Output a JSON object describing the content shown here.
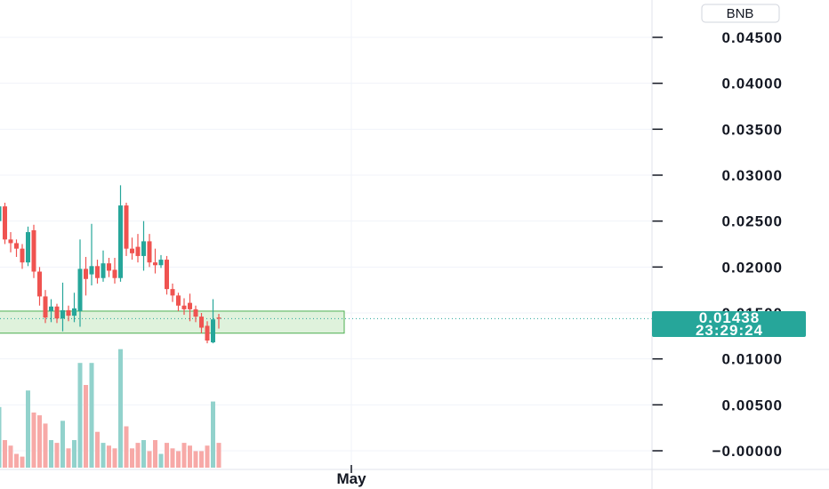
{
  "currency_badge": "BNB",
  "chart_data": {
    "type": "candlestick",
    "y_ticks": [
      "0.04500",
      "0.04000",
      "0.03500",
      "0.03000",
      "0.02500",
      "0.02000",
      "0.01500",
      "0.01000",
      "0.00500",
      "−0.00000"
    ],
    "ylim": [
      -0.001,
      0.0495
    ],
    "x_ticks": [
      "May"
    ],
    "grid": true,
    "last_price": "0.01438",
    "countdown": "23:29:24",
    "zone": {
      "low": 0.0128,
      "high": 0.0152
    },
    "candles": [
      {
        "o": 0.025,
        "h": 0.0272,
        "l": 0.0231,
        "c": 0.0266
      },
      {
        "o": 0.0266,
        "h": 0.027,
        "l": 0.0225,
        "c": 0.023
      },
      {
        "o": 0.023,
        "h": 0.0238,
        "l": 0.0216,
        "c": 0.0226
      },
      {
        "o": 0.0226,
        "h": 0.023,
        "l": 0.0211,
        "c": 0.022
      },
      {
        "o": 0.022,
        "h": 0.0225,
        "l": 0.0198,
        "c": 0.0205
      },
      {
        "o": 0.0205,
        "h": 0.0244,
        "l": 0.0201,
        "c": 0.0238
      },
      {
        "o": 0.024,
        "h": 0.0246,
        "l": 0.0188,
        "c": 0.0195
      },
      {
        "o": 0.0195,
        "h": 0.02,
        "l": 0.0158,
        "c": 0.0168
      },
      {
        "o": 0.0168,
        "h": 0.0175,
        "l": 0.0139,
        "c": 0.0145
      },
      {
        "o": 0.0152,
        "h": 0.0165,
        "l": 0.014,
        "c": 0.0157
      },
      {
        "o": 0.0157,
        "h": 0.016,
        "l": 0.0139,
        "c": 0.0144
      },
      {
        "o": 0.0144,
        "h": 0.0183,
        "l": 0.013,
        "c": 0.0153
      },
      {
        "o": 0.0153,
        "h": 0.0158,
        "l": 0.0141,
        "c": 0.0147
      },
      {
        "o": 0.0147,
        "h": 0.0172,
        "l": 0.014,
        "c": 0.0155
      },
      {
        "o": 0.0152,
        "h": 0.023,
        "l": 0.0135,
        "c": 0.0198
      },
      {
        "o": 0.0198,
        "h": 0.0211,
        "l": 0.0169,
        "c": 0.0187
      },
      {
        "o": 0.0192,
        "h": 0.0247,
        "l": 0.018,
        "c": 0.0201
      },
      {
        "o": 0.0201,
        "h": 0.0208,
        "l": 0.0182,
        "c": 0.0188
      },
      {
        "o": 0.0188,
        "h": 0.0218,
        "l": 0.0184,
        "c": 0.0204
      },
      {
        "o": 0.0204,
        "h": 0.021,
        "l": 0.0189,
        "c": 0.0196
      },
      {
        "o": 0.0197,
        "h": 0.021,
        "l": 0.0182,
        "c": 0.0188
      },
      {
        "o": 0.0188,
        "h": 0.0289,
        "l": 0.0184,
        "c": 0.0267
      },
      {
        "o": 0.0267,
        "h": 0.027,
        "l": 0.0212,
        "c": 0.022
      },
      {
        "o": 0.022,
        "h": 0.0232,
        "l": 0.0208,
        "c": 0.0215
      },
      {
        "o": 0.0222,
        "h": 0.0236,
        "l": 0.0205,
        "c": 0.0212
      },
      {
        "o": 0.0212,
        "h": 0.025,
        "l": 0.0196,
        "c": 0.0228
      },
      {
        "o": 0.0228,
        "h": 0.0236,
        "l": 0.02,
        "c": 0.0205
      },
      {
        "o": 0.0205,
        "h": 0.022,
        "l": 0.0193,
        "c": 0.0202
      },
      {
        "o": 0.0202,
        "h": 0.0213,
        "l": 0.0199,
        "c": 0.0208
      },
      {
        "o": 0.0208,
        "h": 0.0212,
        "l": 0.017,
        "c": 0.0176
      },
      {
        "o": 0.0176,
        "h": 0.0182,
        "l": 0.0162,
        "c": 0.0169
      },
      {
        "o": 0.0169,
        "h": 0.0172,
        "l": 0.0152,
        "c": 0.0158
      },
      {
        "o": 0.0158,
        "h": 0.0166,
        "l": 0.0148,
        "c": 0.0154
      },
      {
        "o": 0.0161,
        "h": 0.0171,
        "l": 0.0141,
        "c": 0.0154
      },
      {
        "o": 0.0154,
        "h": 0.0158,
        "l": 0.014,
        "c": 0.0146
      },
      {
        "o": 0.0146,
        "h": 0.015,
        "l": 0.0128,
        "c": 0.0134
      },
      {
        "o": 0.0136,
        "h": 0.0141,
        "l": 0.0117,
        "c": 0.012
      },
      {
        "o": 0.0118,
        "h": 0.0165,
        "l": 0.0117,
        "c": 0.0143
      },
      {
        "o": 0.0145,
        "h": 0.0149,
        "l": 0.0133,
        "c": 0.01438
      }
    ],
    "volumes": [
      0.22,
      0.1,
      0.08,
      0.05,
      0.04,
      0.28,
      0.2,
      0.19,
      0.16,
      0.1,
      0.09,
      0.17,
      0.07,
      0.1,
      0.38,
      0.3,
      0.38,
      0.13,
      0.09,
      0.08,
      0.07,
      0.43,
      0.15,
      0.07,
      0.09,
      0.1,
      0.06,
      0.1,
      0.05,
      0.09,
      0.07,
      0.06,
      0.09,
      0.08,
      0.06,
      0.06,
      0.08,
      0.24,
      0.09
    ]
  },
  "colors": {
    "up": "#26a69a",
    "down": "#ef5350",
    "up_volume": "#92d2cc",
    "down_volume": "#f7a9a7",
    "zone_fill": "#dff2dc",
    "zone_border": "#4caf50",
    "grid": "#f0f3fa",
    "price_tag": "#26a69a"
  }
}
